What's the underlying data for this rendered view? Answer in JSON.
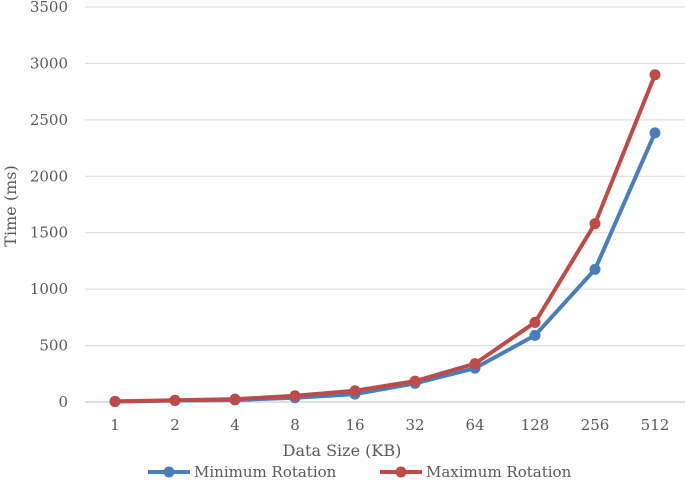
{
  "chart_data": {
    "type": "line",
    "title": "",
    "xlabel": "Data Size (KB)",
    "ylabel": "Time (ms)",
    "categories": [
      "1",
      "2",
      "4",
      "8",
      "16",
      "32",
      "64",
      "128",
      "256",
      "512"
    ],
    "ylim": [
      0,
      3500
    ],
    "yticks": [
      "0",
      "500",
      "1000",
      "1500",
      "2000",
      "2500",
      "3000",
      "3500"
    ],
    "grid": true,
    "legend_position": "bottom",
    "series": [
      {
        "name": "Minimum Rotation",
        "color": "#4a7ebb",
        "values": [
          4,
          12,
          18,
          38,
          70,
          165,
          300,
          590,
          1175,
          2385
        ]
      },
      {
        "name": "Maximum Rotation",
        "color": "#be4b48",
        "values": [
          6,
          15,
          25,
          55,
          100,
          185,
          340,
          705,
          1580,
          2900
        ]
      }
    ]
  }
}
